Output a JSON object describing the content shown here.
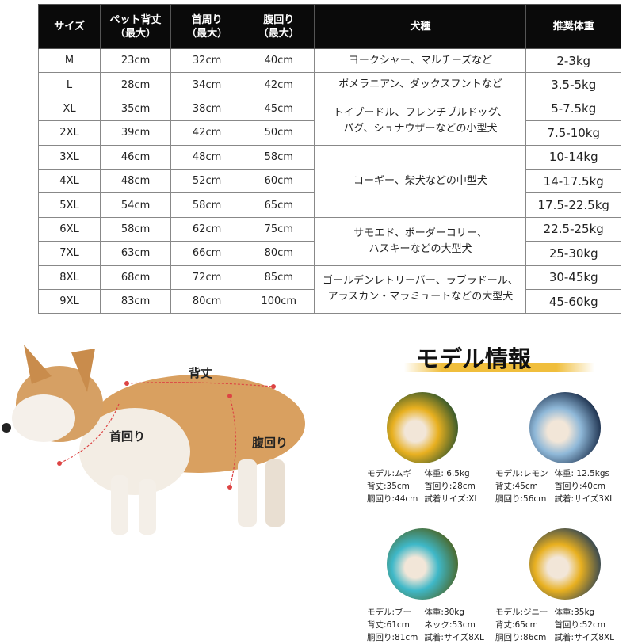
{
  "table": {
    "headers": [
      "サイズ",
      "ペット背丈\n（最大）",
      "首周り\n（最大）",
      "腹回り\n（最大）",
      "犬種",
      "推奨体重"
    ],
    "rows": [
      {
        "size": "M",
        "back": "23cm",
        "neck": "32cm",
        "belly": "40cm",
        "weight": "2-3kg"
      },
      {
        "size": "L",
        "back": "28cm",
        "neck": "34cm",
        "belly": "42cm",
        "weight": "3.5-5kg"
      },
      {
        "size": "XL",
        "back": "35cm",
        "neck": "38cm",
        "belly": "45cm",
        "weight": "5-7.5kg"
      },
      {
        "size": "2XL",
        "back": "39cm",
        "neck": "42cm",
        "belly": "50cm",
        "weight": "7.5-10kg"
      },
      {
        "size": "3XL",
        "back": "46cm",
        "neck": "48cm",
        "belly": "58cm",
        "weight": "10-14kg"
      },
      {
        "size": "4XL",
        "back": "48cm",
        "neck": "52cm",
        "belly": "60cm",
        "weight": "14-17.5kg"
      },
      {
        "size": "5XL",
        "back": "54cm",
        "neck": "58cm",
        "belly": "65cm",
        "weight": "17.5-22.5kg"
      },
      {
        "size": "6XL",
        "back": "58cm",
        "neck": "62cm",
        "belly": "75cm",
        "weight": "22.5-25kg"
      },
      {
        "size": "7XL",
        "back": "63cm",
        "neck": "66cm",
        "belly": "80cm",
        "weight": "25-30kg"
      },
      {
        "size": "8XL",
        "back": "68cm",
        "neck": "72cm",
        "belly": "85cm",
        "weight": "30-45kg"
      },
      {
        "size": "9XL",
        "back": "83cm",
        "neck": "80cm",
        "belly": "100cm",
        "weight": "45-60kg"
      }
    ],
    "breeds": [
      "ヨークシャー、マルチーズなど",
      "ポメラニアン、ダックスフントなど",
      "トイプードル、フレンチブルドッグ、\nパグ、シュナウザーなどの小型犬",
      "コーギー、柴犬などの中型犬",
      "サモエド、ボーダーコリー、\nハスキーなどの大型犬",
      "ゴールデンレトリーバー、ラブラドール、\nアラスカン・マラミュートなどの大型犬"
    ]
  },
  "diagram": {
    "back_label": "背丈",
    "neck_label": "首回り",
    "belly_label": "腹回り"
  },
  "models": {
    "title": "モデル情報",
    "accent": "#f0be3c",
    "items": [
      {
        "lines": [
          "モデル:ムギ",
          "体重: 6.5kg",
          "背丈:35cm",
          "首回り:28cm",
          "胴回り:44cm",
          "試着サイズ:XL"
        ]
      },
      {
        "lines": [
          "モデル:レモン",
          "体重: 12.5kgs",
          "背丈:45cm",
          "首回り:40cm",
          "胴回り:56cm",
          "試着:サイズ3XL"
        ]
      },
      {
        "lines": [
          "モデル:ブー",
          "体重:30kg",
          "背丈:61cm",
          "ネック:53cm",
          "胴回り:81cm",
          "試着:サイズ8XL"
        ]
      },
      {
        "lines": [
          "モデル:ジニー",
          "体重:35kg",
          "背丈:65cm",
          "首回り:52cm",
          "胴回り:86cm",
          "試着:サイズ8XL"
        ]
      }
    ]
  }
}
